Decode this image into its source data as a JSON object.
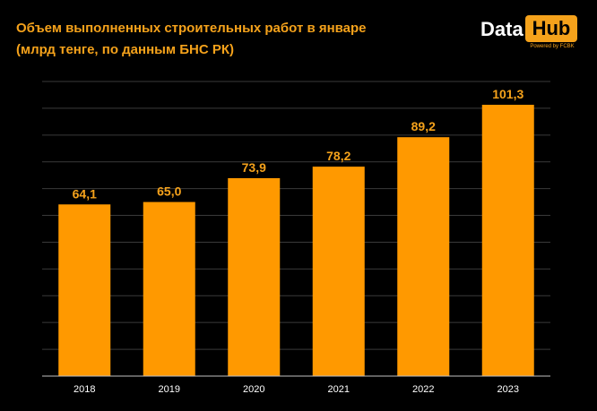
{
  "title": {
    "line1": "Объем выполненных строительных работ в январе",
    "line2": "(млрд тенге, по данным БНС РК)"
  },
  "logo": {
    "data_text": "Data",
    "hub_text": "Hub",
    "powered_text": "Powered by FCBK"
  },
  "colors": {
    "bar": "#ff9900",
    "label": "#f5a21b",
    "background": "#000000",
    "grid": "#3a3a3a"
  },
  "chart_data": {
    "type": "bar",
    "title": "Объем выполненных строительных работ в январе",
    "subtitle": "(млрд тенге, по данным БНС РК)",
    "categories": [
      "2018",
      "2019",
      "2020",
      "2021",
      "2022",
      "2023"
    ],
    "values": [
      64.1,
      65.0,
      73.9,
      78.2,
      89.2,
      101.3
    ],
    "value_labels": [
      "64,1",
      "65,0",
      "73,9",
      "78,2",
      "89,2",
      "101,3"
    ],
    "xlabel": "",
    "ylabel": "",
    "ylim": [
      0,
      110
    ],
    "grid": true,
    "legend": "none"
  }
}
